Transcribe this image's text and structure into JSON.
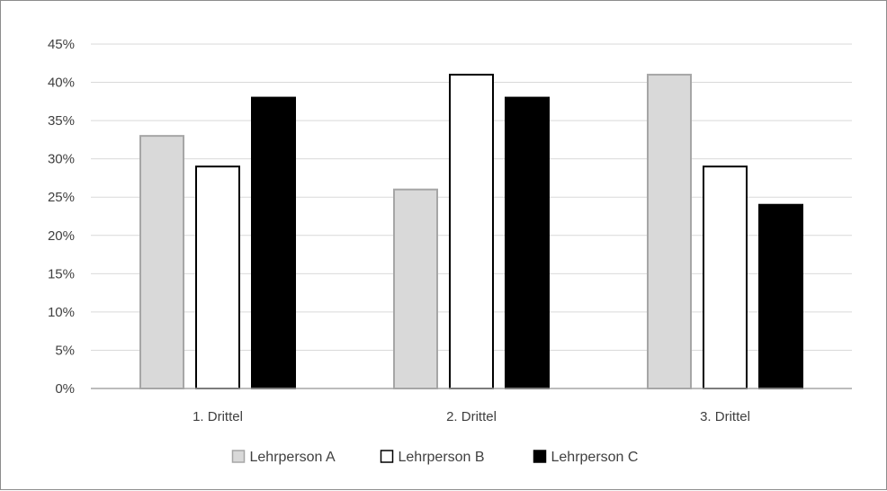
{
  "chart_data": {
    "type": "bar",
    "categories": [
      "1. Drittel",
      "2. Drittel",
      "3. Drittel"
    ],
    "series": [
      {
        "name": "Lehrperson A",
        "values": [
          33,
          26,
          41
        ],
        "color": "#d9d9d9",
        "stroke": "#a6a6a6"
      },
      {
        "name": "Lehrperson B",
        "values": [
          29,
          41,
          29
        ],
        "color": "#ffffff",
        "stroke": "#000000"
      },
      {
        "name": "Lehrperson C",
        "values": [
          38,
          38,
          24
        ],
        "color": "#000000",
        "stroke": "#000000"
      }
    ],
    "ylim": [
      0,
      45
    ],
    "yticks": [
      0,
      5,
      10,
      15,
      20,
      25,
      30,
      35,
      40,
      45
    ],
    "ytick_labels": [
      "0%",
      "5%",
      "10%",
      "15%",
      "20%",
      "25%",
      "30%",
      "35%",
      "40%",
      "45%"
    ],
    "grid": true,
    "legend_position": "bottom",
    "title": "",
    "xlabel": "",
    "ylabel": ""
  }
}
